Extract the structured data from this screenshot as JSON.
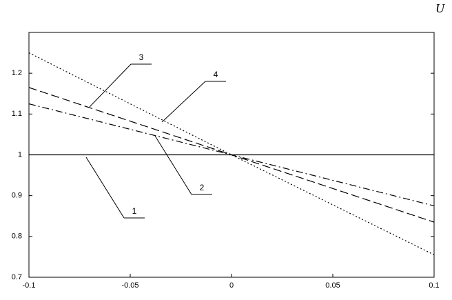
{
  "chart_data": {
    "type": "line",
    "annotation": "U",
    "x": [
      -0.1,
      0,
      0.1
    ],
    "series": [
      {
        "name": "1",
        "color": "#000000",
        "dash": "none",
        "values": [
          1,
          1,
          1
        ]
      },
      {
        "name": "2",
        "color": "#000000",
        "dash": "10 4 2 4",
        "values": [
          1.125,
          1,
          0.875
        ]
      },
      {
        "name": "3",
        "color": "#000000",
        "dash": "12 5",
        "values": [
          1.165,
          1,
          0.835
        ]
      },
      {
        "name": "4",
        "color": "#000000",
        "dash": "2 3",
        "values": [
          1.25,
          1,
          0.755
        ]
      }
    ],
    "xlim": [
      -0.1,
      0.1
    ],
    "xticks": [
      -0.1,
      -0.05,
      0,
      0.05,
      0.1
    ],
    "ylim": [
      0.7,
      1.3
    ],
    "yticks": [
      0.7,
      0.8,
      0.9,
      1,
      1.1,
      1.2
    ]
  }
}
